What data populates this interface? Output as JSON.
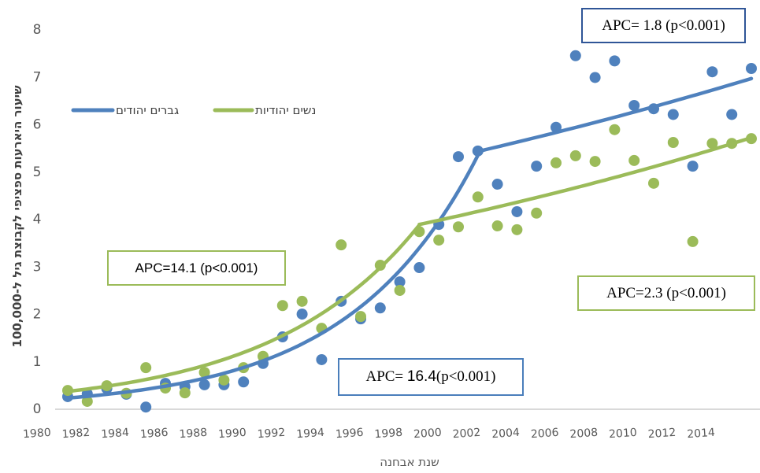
{
  "chart_data": {
    "type": "scatter",
    "title": "",
    "xlabel": "שנת אבחנה",
    "ylabel": "שיעור היארעות ספציפי לקבוצת גיל ל-100,000",
    "xlim": [
      1980,
      2016
    ],
    "ylim": [
      0,
      8
    ],
    "grid": false,
    "legend_position": "top-left",
    "x_ticks": [
      "1980",
      "1982",
      "1984",
      "1986",
      "1988",
      "1990",
      "1992",
      "1994",
      "1996",
      "1998",
      "2000",
      "2002",
      "2004",
      "2006",
      "2008",
      "2010",
      "2012",
      "2014"
    ],
    "y_ticks": [
      "0",
      "1",
      "2",
      "3",
      "4",
      "5",
      "6",
      "7",
      "8"
    ],
    "years": [
      1981,
      1982,
      1983,
      1984,
      1985,
      1986,
      1987,
      1988,
      1989,
      1990,
      1991,
      1992,
      1993,
      1994,
      1995,
      1996,
      1997,
      1998,
      1999,
      2000,
      2001,
      2002,
      2003,
      2004,
      2005,
      2006,
      2007,
      2008,
      2009,
      2010,
      2011,
      2012,
      2013,
      2014,
      2015,
      2016
    ],
    "series": [
      {
        "name": "גברים יהודים",
        "color": "#4f81bd",
        "observed": [
          0.25,
          0.31,
          0.42,
          0.3,
          0.03,
          0.53,
          0.46,
          0.5,
          0.5,
          0.56,
          0.95,
          1.51,
          1.99,
          1.03,
          2.26,
          1.89,
          2.12,
          2.67,
          2.97,
          3.88,
          5.31,
          5.43,
          4.73,
          4.15,
          5.11,
          5.93,
          7.44,
          6.98,
          7.33,
          6.39,
          6.32,
          6.2,
          5.11,
          7.1,
          6.2,
          7.17
        ],
        "trend": {
          "segments": [
            {
              "from": 1981,
              "to": 2002,
              "start_value": 0.22,
              "end_value": 5.42,
              "apc": 16.4
            },
            {
              "from": 2002,
              "to": 2016,
              "start_value": 5.42,
              "end_value": 6.96,
              "apc": 1.8
            }
          ]
        }
      },
      {
        "name": "נשים יהודיות",
        "color": "#9bbb59",
        "observed": [
          0.38,
          0.15,
          0.48,
          0.32,
          0.86,
          0.43,
          0.33,
          0.76,
          0.6,
          0.86,
          1.1,
          2.17,
          2.26,
          1.69,
          3.45,
          1.94,
          3.02,
          2.49,
          3.73,
          3.55,
          3.83,
          4.46,
          3.85,
          3.77,
          4.12,
          5.18,
          5.33,
          5.21,
          5.88,
          5.23,
          4.75,
          5.61,
          3.52,
          5.59,
          5.59,
          5.69
        ],
        "trend": {
          "segments": [
            {
              "from": 1981,
              "to": 1999,
              "start_value": 0.36,
              "end_value": 3.88,
              "apc": 14.1
            },
            {
              "from": 1999,
              "to": 2016,
              "start_value": 3.88,
              "end_value": 5.73,
              "apc": 2.3
            }
          ]
        }
      }
    ],
    "annotations": [
      {
        "id": "men-2",
        "text": "APC= 1.8 (p<0.001)"
      },
      {
        "id": "women-1",
        "text": "APC=14.1 (p<0.001)"
      },
      {
        "id": "men-1",
        "text_prefix": "APC= ",
        "text_value": "16.4",
        "text_suffix": "(p<0.001)"
      },
      {
        "id": "women-2",
        "text": "APC=2.3 (p<0.001)"
      }
    ]
  }
}
